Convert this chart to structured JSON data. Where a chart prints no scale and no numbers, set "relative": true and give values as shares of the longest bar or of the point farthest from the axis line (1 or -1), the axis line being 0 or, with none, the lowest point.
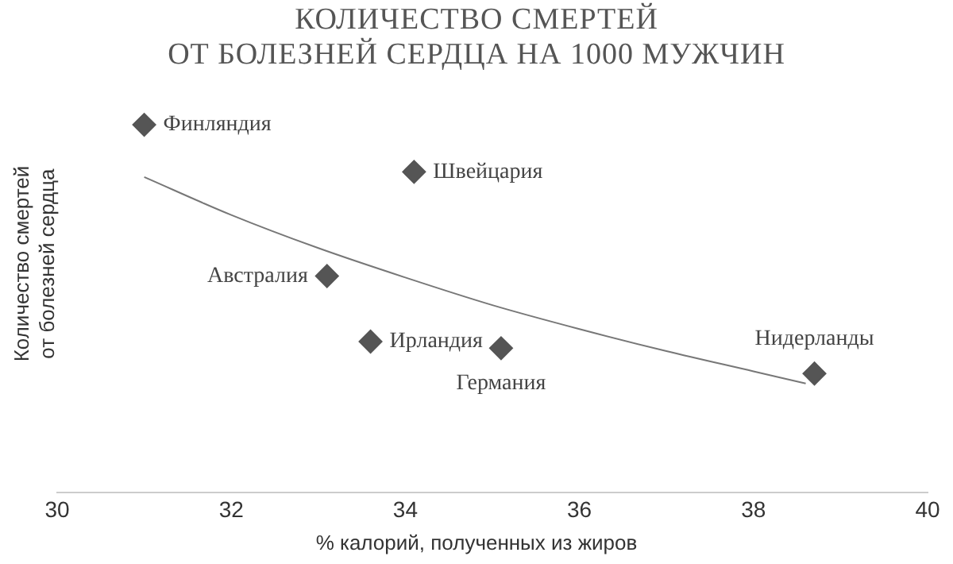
{
  "chart_data": {
    "type": "scatter",
    "title": "КОЛИЧЕСТВО СМЕРТЕЙ\nОТ БОЛЕЗНЕЙ СЕРДЦА НА 1000 МУЖЧИН",
    "xlabel": "% калорий, полученных из жиров",
    "ylabel": "Количество смертей\nот болезней сердца",
    "relative": true,
    "xlim": [
      30,
      40
    ],
    "xticks": [
      30,
      32,
      34,
      36,
      38,
      40
    ],
    "tick_labels": "x",
    "grid": false,
    "legend": false,
    "marker": "diamond",
    "series": [
      {
        "color": "#555555",
        "x": [
          31.0,
          34.1,
          33.1,
          33.6,
          35.1,
          38.7
        ],
        "values": [
          1,
          0.872,
          0.589,
          0.411,
          0.393,
          0.324
        ]
      },
      {
        "type": "line",
        "marker": "none",
        "color": "#777777",
        "x": [
          31.0,
          32,
          33,
          34,
          35,
          36,
          37,
          38,
          38.6
        ],
        "values": [
          0.858,
          0.755,
          0.665,
          0.585,
          0.51,
          0.445,
          0.385,
          0.33,
          0.297
        ]
      }
    ],
    "annotations": [
      {
        "text": "Финляндия",
        "x": 31.0,
        "y": 1
      },
      {
        "text": "Швейцария",
        "x": 34.1,
        "y": 0.872
      },
      {
        "text": "Австралия",
        "x": 33.1,
        "y": 0.589
      },
      {
        "text": "Ирландия",
        "x": 33.6,
        "y": 0.411
      },
      {
        "text": "Германия",
        "x": 35.1,
        "y": 0.393
      },
      {
        "text": "Нидерланды",
        "x": 38.7,
        "y": 0.324
      }
    ]
  }
}
